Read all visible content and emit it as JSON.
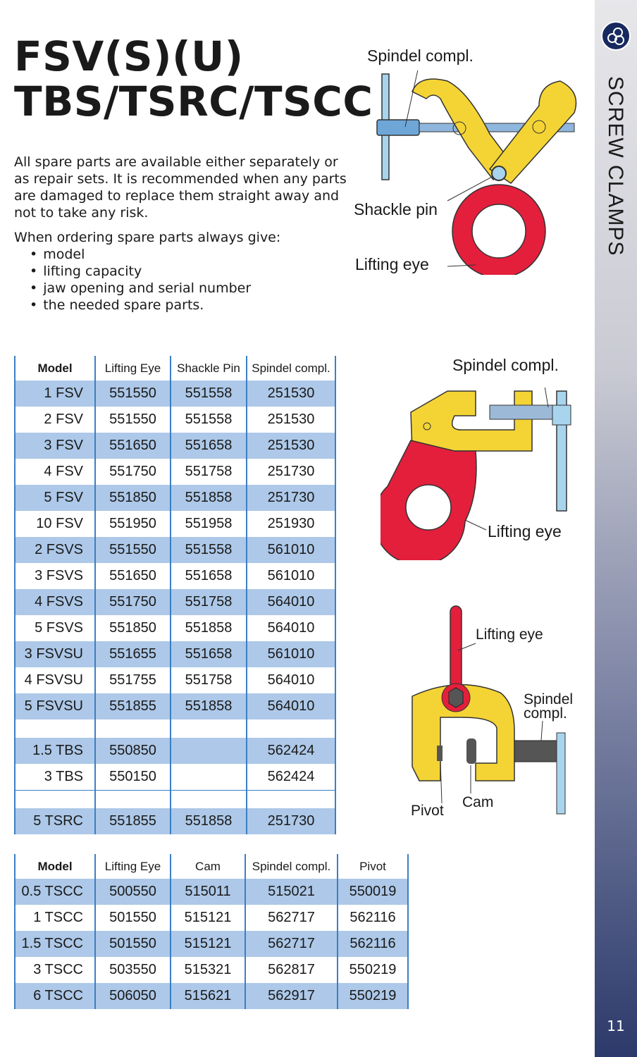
{
  "title": {
    "line1": "FSV(S)(U)",
    "line2": "TBS/TSRC/TSCC"
  },
  "intro": "All spare parts are available either separately or as repair sets. It is recommended when any parts are damaged to replace them straight away and not to take any risk.",
  "ordering": {
    "heading": "When ordering spare parts always give:",
    "items": [
      "model",
      "lifting capacity",
      "jaw opening and serial number",
      "the needed spare parts."
    ]
  },
  "sidebar": {
    "title": "SCREW CLAMPS",
    "page_number": "11",
    "logo_icon": "rolls-logo-icon"
  },
  "colors": {
    "row_blue": "#adc8e8",
    "border_blue": "#3b7fc4",
    "yellow": "#f4d435",
    "red": "#e31f3c",
    "sidebar_dark": "#2c3a6b"
  },
  "figure1": {
    "spindel": "Spindel compl.",
    "shackle": "Shackle pin",
    "eye": "Lifting eye"
  },
  "figure2": {
    "spindel": "Spindel compl.",
    "eye": "Lifting eye"
  },
  "figure3": {
    "eye": "Lifting eye",
    "spindel1": "Spindel",
    "spindel2": "compl.",
    "pivot": "Pivot",
    "cam": "Cam"
  },
  "table1": {
    "headers": [
      "Model",
      "Lifting Eye",
      "Shackle Pin",
      "Spindel compl."
    ],
    "rows": [
      {
        "style": "blue",
        "cells": [
          "1 FSV",
          "551550",
          "551558",
          "251530"
        ]
      },
      {
        "style": "",
        "cells": [
          "2 FSV",
          "551550",
          "551558",
          "251530"
        ]
      },
      {
        "style": "blue",
        "cells": [
          "3 FSV",
          "551650",
          "551658",
          "251530"
        ]
      },
      {
        "style": "",
        "cells": [
          "4 FSV",
          "551750",
          "551758",
          "251730"
        ]
      },
      {
        "style": "blue",
        "cells": [
          "5 FSV",
          "551850",
          "551858",
          "251730"
        ]
      },
      {
        "style": "",
        "cells": [
          "10 FSV",
          "551950",
          "551958",
          "251930"
        ]
      },
      {
        "style": "blue",
        "cells": [
          "2 FSVS",
          "551550",
          "551558",
          "561010"
        ]
      },
      {
        "style": "",
        "cells": [
          "3 FSVS",
          "551650",
          "551658",
          "561010"
        ]
      },
      {
        "style": "blue",
        "cells": [
          "4 FSVS",
          "551750",
          "551758",
          "564010"
        ]
      },
      {
        "style": "",
        "cells": [
          "5 FSVS",
          "551850",
          "551858",
          "564010"
        ]
      },
      {
        "style": "blue",
        "cells": [
          "3 FSVSU",
          "551655",
          "551658",
          "561010"
        ]
      },
      {
        "style": "",
        "cells": [
          "4 FSVSU",
          "551755",
          "551758",
          "564010"
        ]
      },
      {
        "style": "blue",
        "cells": [
          "5 FSVSU",
          "551855",
          "551858",
          "564010"
        ]
      },
      {
        "style": "gap",
        "cells": [
          "",
          "",
          "",
          ""
        ]
      },
      {
        "style": "blue",
        "cells": [
          "1.5 TBS",
          "550850",
          "",
          "562424"
        ]
      },
      {
        "style": "",
        "cells": [
          "3 TBS",
          "550150",
          "",
          "562424"
        ]
      },
      {
        "style": "gap gapline",
        "cells": [
          "",
          "",
          "",
          ""
        ]
      },
      {
        "style": "blue",
        "cells": [
          "5 TSRC",
          "551855",
          "551858",
          "251730"
        ]
      }
    ]
  },
  "table2": {
    "headers": [
      "Model",
      "Lifting Eye",
      "Cam",
      "Spindel compl.",
      "Pivot"
    ],
    "rows": [
      {
        "style": "blue",
        "cells": [
          "0.5 TSCC",
          "500550",
          "515011",
          "515021",
          "550019"
        ]
      },
      {
        "style": "",
        "cells": [
          "1 TSCC",
          "501550",
          "515121",
          "562717",
          "562116"
        ]
      },
      {
        "style": "blue",
        "cells": [
          "1.5 TSCC",
          "501550",
          "515121",
          "562717",
          "562116"
        ]
      },
      {
        "style": "",
        "cells": [
          "3 TSCC",
          "503550",
          "515321",
          "562817",
          "550219"
        ]
      },
      {
        "style": "blue",
        "cells": [
          "6 TSCC",
          "506050",
          "515621",
          "562917",
          "550219"
        ]
      }
    ]
  }
}
